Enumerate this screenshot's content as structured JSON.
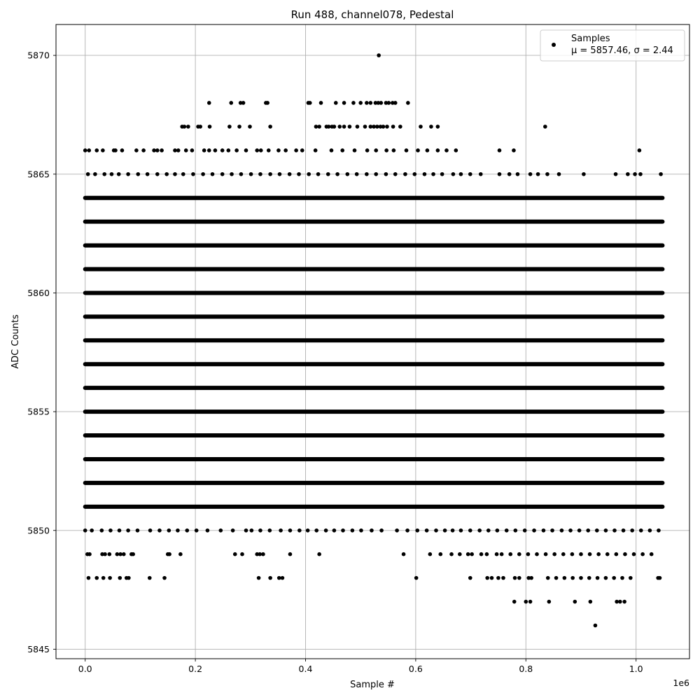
{
  "chart_data": {
    "type": "scatter",
    "title": "Run 488, channel078, Pedestal",
    "xlabel": "Sample #",
    "ylabel": "ADC Counts",
    "x_offset_label": "1e6",
    "xlim": [
      -0.053,
      1.097
    ],
    "ylim": [
      5844.6,
      5871.3
    ],
    "x_ticks": [
      0.0,
      0.2,
      0.4,
      0.6,
      0.8,
      1.0
    ],
    "x_tick_labels": [
      "0.0",
      "0.2",
      "0.4",
      "0.6",
      "0.8",
      "1.0"
    ],
    "y_ticks": [
      5845,
      5850,
      5855,
      5860,
      5865,
      5870
    ],
    "y_tick_labels": [
      "5845",
      "5850",
      "5855",
      "5860",
      "5865",
      "5870"
    ],
    "grid": true,
    "legend": {
      "placement": "top-right",
      "label": "Samples",
      "stats": "μ = 5857.46, σ = 2.44"
    },
    "x_range": [
      0.0,
      1.048
    ],
    "series": [
      {
        "name": "Samples",
        "color": "#000000",
        "marker": "dot",
        "continuous_levels": [
          5851,
          5852,
          5853,
          5854,
          5855,
          5856,
          5857,
          5858,
          5859,
          5860,
          5861,
          5862,
          5863,
          5864
        ],
        "sparse_points": [
          {
            "y": 5870,
            "x": [
              0.533
            ]
          },
          {
            "y": 5868,
            "x": [
              0.225,
              0.265,
              0.282,
              0.287,
              0.328,
              0.331,
              0.405,
              0.408,
              0.428,
              0.455,
              0.47,
              0.487,
              0.5,
              0.511,
              0.518,
              0.527,
              0.532,
              0.537,
              0.546,
              0.551,
              0.558,
              0.563,
              0.586
            ]
          },
          {
            "y": 5867,
            "x": [
              0.176,
              0.18,
              0.187,
              0.205,
              0.209,
              0.226,
              0.262,
              0.28,
              0.299,
              0.336,
              0.419,
              0.425,
              0.438,
              0.442,
              0.448,
              0.452,
              0.462,
              0.47,
              0.48,
              0.494,
              0.508,
              0.518,
              0.524,
              0.53,
              0.536,
              0.541,
              0.548,
              0.559,
              0.572,
              0.609,
              0.628,
              0.64,
              0.835
            ]
          },
          {
            "y": 5866,
            "x": [
              0.0,
              0.007,
              0.021,
              0.032,
              0.052,
              0.055,
              0.067,
              0.093,
              0.106,
              0.125,
              0.131,
              0.139,
              0.163,
              0.169,
              0.183,
              0.194,
              0.216,
              0.225,
              0.236,
              0.249,
              0.26,
              0.275,
              0.292,
              0.312,
              0.319,
              0.333,
              0.351,
              0.364,
              0.383,
              0.394,
              0.418,
              0.447,
              0.467,
              0.489,
              0.512,
              0.528,
              0.547,
              0.56,
              0.583,
              0.604,
              0.621,
              0.64,
              0.656,
              0.673,
              0.752,
              0.778,
              1.006
            ]
          },
          {
            "y": 5865,
            "x": [
              0.005,
              0.018,
              0.035,
              0.048,
              0.061,
              0.078,
              0.096,
              0.113,
              0.131,
              0.148,
              0.163,
              0.178,
              0.196,
              0.214,
              0.231,
              0.249,
              0.266,
              0.283,
              0.301,
              0.318,
              0.336,
              0.353,
              0.371,
              0.388,
              0.406,
              0.423,
              0.441,
              0.458,
              0.476,
              0.493,
              0.511,
              0.528,
              0.546,
              0.563,
              0.581,
              0.598,
              0.616,
              0.632,
              0.648,
              0.668,
              0.682,
              0.699,
              0.718,
              0.752,
              0.77,
              0.785,
              0.808,
              0.822,
              0.839,
              0.86,
              0.905,
              0.963,
              0.985,
              0.998,
              1.008,
              1.045
            ]
          },
          {
            "y": 5850,
            "x": [
              0.0,
              0.012,
              0.03,
              0.046,
              0.062,
              0.078,
              0.095,
              0.118,
              0.135,
              0.152,
              0.168,
              0.185,
              0.202,
              0.222,
              0.246,
              0.268,
              0.292,
              0.302,
              0.318,
              0.335,
              0.355,
              0.372,
              0.389,
              0.404,
              0.42,
              0.437,
              0.452,
              0.468,
              0.485,
              0.501,
              0.52,
              0.538,
              0.566,
              0.585,
              0.603,
              0.62,
              0.637,
              0.653,
              0.667,
              0.682,
              0.699,
              0.716,
              0.732,
              0.748,
              0.765,
              0.781,
              0.798,
              0.815,
              0.832,
              0.848,
              0.865,
              0.881,
              0.897,
              0.913,
              0.929,
              0.945,
              0.961,
              0.977,
              0.993,
              1.009,
              1.025,
              1.041
            ]
          },
          {
            "y": 5849,
            "x": [
              0.004,
              0.008,
              0.031,
              0.036,
              0.044,
              0.058,
              0.064,
              0.07,
              0.084,
              0.087,
              0.15,
              0.153,
              0.173,
              0.272,
              0.285,
              0.312,
              0.317,
              0.323,
              0.372,
              0.425,
              0.578,
              0.626,
              0.645,
              0.665,
              0.68,
              0.695,
              0.702,
              0.719,
              0.729,
              0.747,
              0.756,
              0.772,
              0.788,
              0.804,
              0.82,
              0.836,
              0.852,
              0.868,
              0.884,
              0.9,
              0.916,
              0.932,
              0.948,
              0.964,
              0.98,
              0.996,
              1.012,
              1.028
            ]
          },
          {
            "y": 5848,
            "x": [
              0.006,
              0.021,
              0.033,
              0.045,
              0.063,
              0.075,
              0.079,
              0.117,
              0.144,
              0.315,
              0.336,
              0.352,
              0.358,
              0.601,
              0.699,
              0.73,
              0.738,
              0.75,
              0.759,
              0.78,
              0.788,
              0.805,
              0.81,
              0.84,
              0.855,
              0.87,
              0.885,
              0.9,
              0.915,
              0.93,
              0.945,
              0.96,
              0.975,
              0.99,
              1.04,
              1.043
            ]
          },
          {
            "y": 5847,
            "x": [
              0.779,
              0.8,
              0.808,
              0.842,
              0.889,
              0.917,
              0.965,
              0.971,
              0.979
            ]
          },
          {
            "y": 5846,
            "x": [
              0.926
            ]
          }
        ]
      }
    ]
  }
}
